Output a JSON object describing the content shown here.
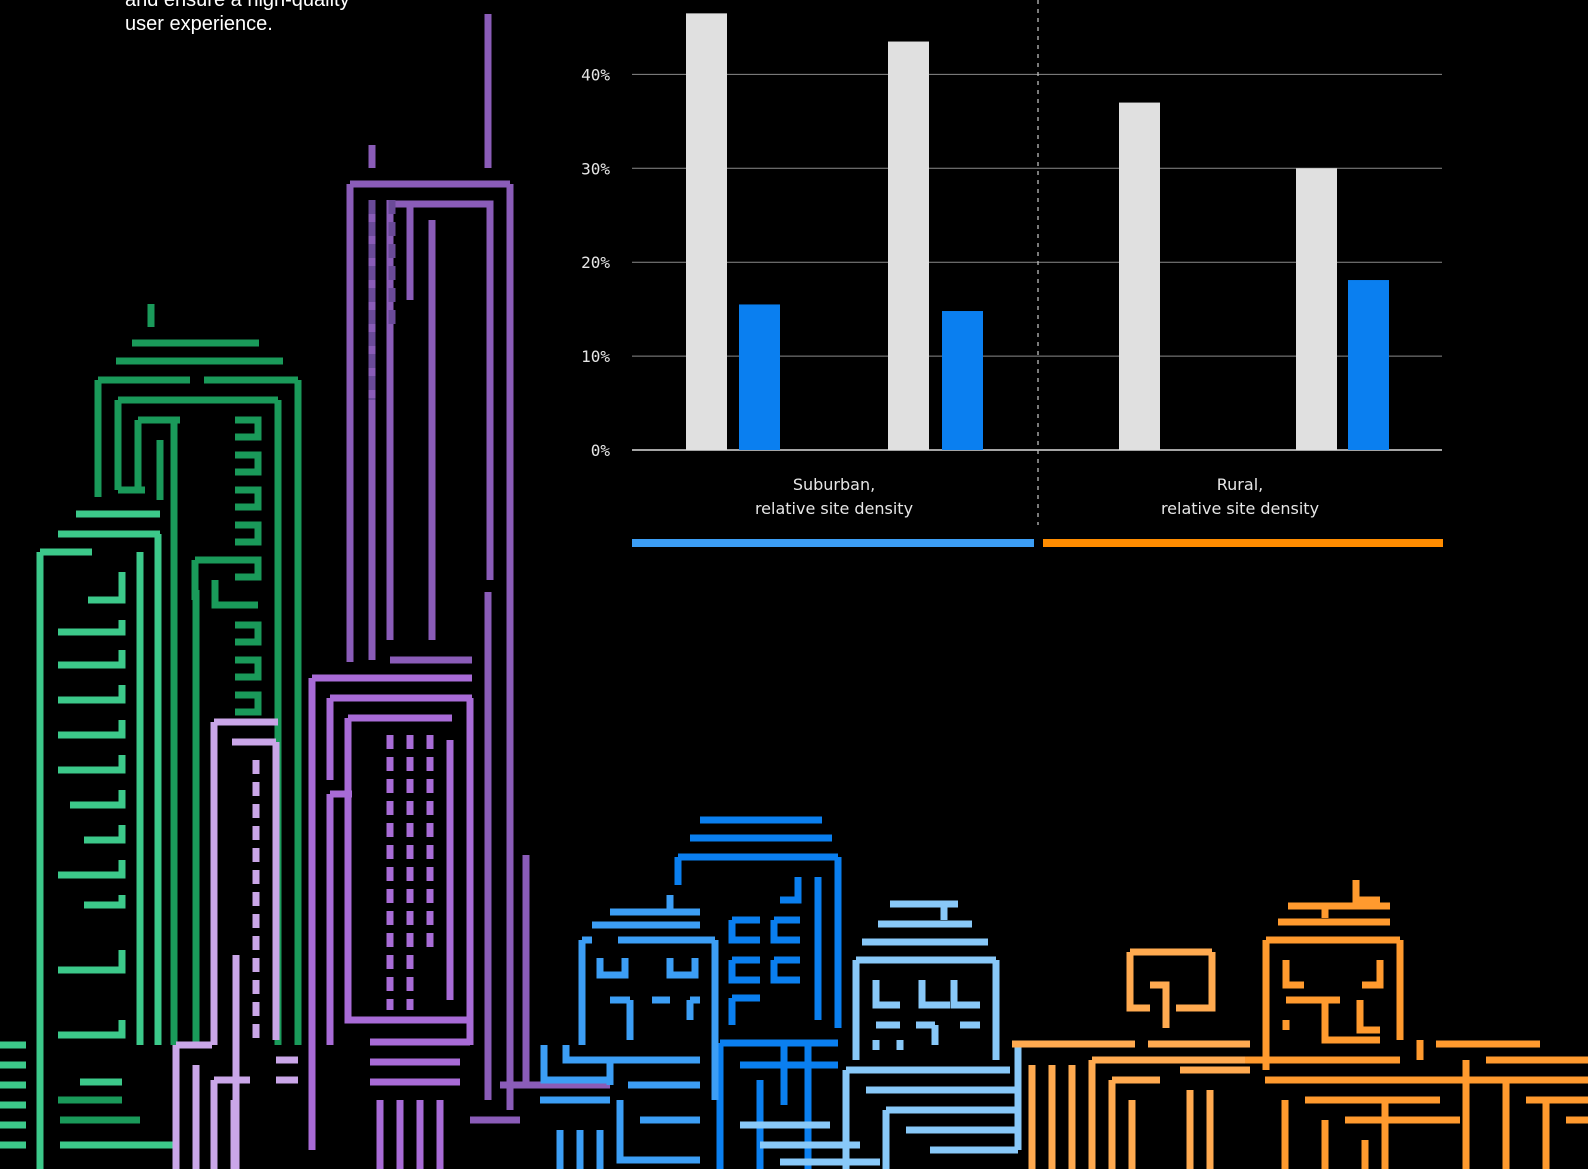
{
  "intro": {
    "lines": [
      "and ensure a high-quality",
      "user experience."
    ]
  },
  "colors": {
    "background": "#000000",
    "series_gray": "#e0e0e0",
    "series_blue": "#0a7ff0",
    "suburban_line": "#3c9ef5",
    "rural_line": "#ff8c00",
    "skyline_green": "#3cc98a",
    "skyline_dark_green": "#1a9a5a",
    "skyline_purple": "#a86bd6",
    "skyline_lilac": "#caa6e8",
    "skyline_blue": "#3c9ef5",
    "skyline_light_blue": "#88c8f8",
    "skyline_orange": "#ff9a2e"
  },
  "chart_data": {
    "type": "bar",
    "title": "",
    "xlabel": "",
    "ylabel": "",
    "ylim": [
      0,
      46
    ],
    "yticks": [
      "0%",
      "10%",
      "20%",
      "30%",
      "40%"
    ],
    "yticks_values": [
      0,
      10,
      20,
      30,
      40
    ],
    "grid": true,
    "groups": [
      {
        "label_lines": [
          "Suburban,",
          "relative site density"
        ],
        "bars": [
          {
            "series": "gray",
            "value": 46.5
          },
          {
            "series": "blue",
            "value": 15.5
          },
          {
            "series": "gray",
            "value": 43.5
          },
          {
            "series": "blue",
            "value": 14.8
          }
        ]
      },
      {
        "label_lines": [
          "Rural,",
          "relative site density"
        ],
        "bars": [
          {
            "series": "gray",
            "value": 37.0
          },
          {
            "series": "none",
            "value": null
          },
          {
            "series": "gray",
            "value": 30.0
          },
          {
            "series": "blue",
            "value": 18.1
          }
        ]
      }
    ]
  }
}
